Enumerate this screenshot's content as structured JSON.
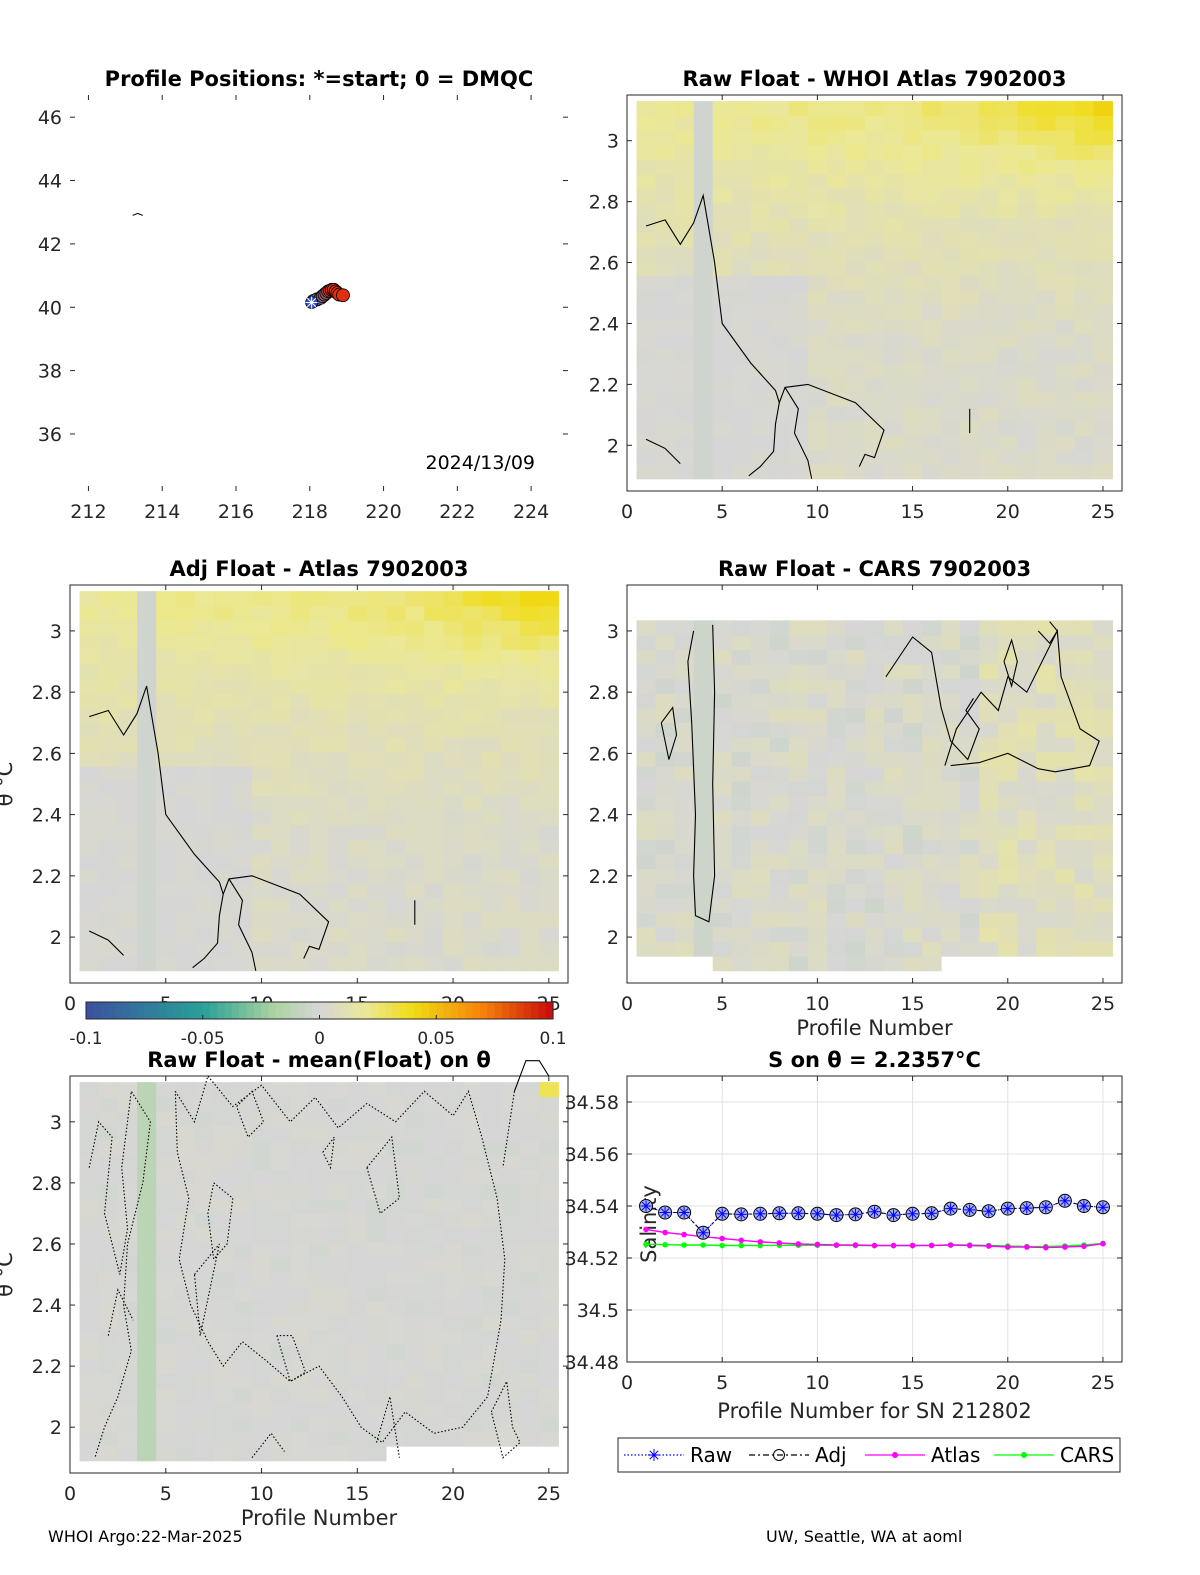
{
  "footer": {
    "left": "WHOI Argo:22-Mar-2025",
    "right": "UW, Seattle, WA at aoml"
  },
  "chart_data": [
    {
      "id": "positions",
      "type": "scatter",
      "title": "Profile Positions: *=start; 0 = DMQC",
      "date_label": "2024/13/09",
      "xlim": [
        211.5,
        225
      ],
      "ylim": [
        34.2,
        46.7
      ],
      "xticks": [
        212,
        214,
        216,
        218,
        220,
        222,
        224
      ],
      "yticks": [
        36,
        38,
        40,
        42,
        44,
        46
      ],
      "start": [
        218.05,
        40.15
      ],
      "track": [
        [
          218.1,
          40.2
        ],
        [
          218.2,
          40.25
        ],
        [
          218.3,
          40.3
        ],
        [
          218.35,
          40.35
        ],
        [
          218.4,
          40.4
        ],
        [
          218.45,
          40.45
        ],
        [
          218.5,
          40.5
        ],
        [
          218.55,
          40.52
        ],
        [
          218.6,
          40.55
        ],
        [
          218.65,
          40.55
        ],
        [
          218.7,
          40.5
        ],
        [
          218.75,
          40.45
        ],
        [
          218.8,
          40.4
        ],
        [
          218.9,
          40.38
        ]
      ]
    },
    {
      "id": "raw-atlas",
      "type": "heatmap",
      "title": "Raw Float - WHOI Atlas  7902003",
      "xlim": [
        0,
        26
      ],
      "ylim": [
        1.85,
        3.15
      ],
      "xticks": [
        0,
        5,
        10,
        15,
        20,
        25
      ],
      "yticks": [
        2,
        2.2,
        2.4,
        2.6,
        2.8,
        3
      ],
      "xlabel": "",
      "ylabel": "",
      "profiles": 25
    },
    {
      "id": "adj-atlas",
      "type": "heatmap",
      "title": "Adj Float - Atlas  7902003",
      "xlim": [
        0,
        26
      ],
      "ylim": [
        1.85,
        3.15
      ],
      "xticks": [
        0,
        5,
        10,
        15,
        20,
        25
      ],
      "yticks": [
        2,
        2.2,
        2.4,
        2.6,
        2.8,
        3
      ],
      "xlabel": "",
      "ylabel": "θ °C",
      "profiles": 25
    },
    {
      "id": "raw-cars",
      "type": "heatmap",
      "title": "Raw Float - CARS  7902003",
      "xlim": [
        0,
        26
      ],
      "ylim": [
        1.85,
        3.15
      ],
      "xticks": [
        0,
        5,
        10,
        15,
        20,
        25
      ],
      "yticks": [
        2,
        2.2,
        2.4,
        2.6,
        2.8,
        3
      ],
      "xlabel": "Profile Number",
      "ylabel": "",
      "profiles": 25
    },
    {
      "id": "raw-mean",
      "type": "heatmap",
      "title": "Raw Float - mean(Float) on θ",
      "xlim": [
        0,
        26
      ],
      "ylim": [
        1.85,
        3.15
      ],
      "xticks": [
        0,
        5,
        10,
        15,
        20,
        25
      ],
      "yticks": [
        2,
        2.2,
        2.4,
        2.6,
        2.8,
        3
      ],
      "xlabel": "Profile Number",
      "ylabel": "θ °C",
      "profiles": 25
    },
    {
      "id": "colorbar",
      "type": "heatmap",
      "range": [
        -0.1,
        0.1
      ],
      "ticks": [
        "-0.1",
        "-0.05",
        "0",
        "0.05",
        "0.1"
      ]
    },
    {
      "id": "salinity",
      "type": "line",
      "title": "S on θ = 2.2357°C",
      "xlabel": "Profile Number for SN 212802",
      "ylabel": "Salinity",
      "xlim": [
        0,
        26
      ],
      "ylim": [
        34.48,
        34.59
      ],
      "xticks": [
        0,
        5,
        10,
        15,
        20,
        25
      ],
      "yticks": [
        "34.48",
        "34.5",
        "34.52",
        "34.54",
        "34.56",
        "34.58"
      ],
      "grid": true,
      "x": [
        1,
        2,
        3,
        4,
        5,
        6,
        7,
        8,
        9,
        10,
        11,
        12,
        13,
        14,
        15,
        16,
        17,
        18,
        19,
        20,
        21,
        22,
        23,
        24,
        25
      ],
      "series": [
        {
          "name": "Raw",
          "color": "#0000ff",
          "values": [
            34.54,
            34.5375,
            34.5375,
            34.5297,
            34.537,
            34.5368,
            34.537,
            34.5372,
            34.5372,
            34.537,
            34.5365,
            34.5368,
            34.5378,
            34.5365,
            34.537,
            34.5372,
            34.539,
            34.5385,
            34.538,
            34.539,
            34.5392,
            34.5395,
            34.542,
            34.54,
            34.5395
          ]
        },
        {
          "name": "Adj",
          "color": "#000000",
          "values": [
            34.54,
            34.5375,
            34.5375,
            34.5297,
            34.537,
            34.5368,
            34.537,
            34.5372,
            34.5372,
            34.537,
            34.5365,
            34.5368,
            34.5378,
            34.5365,
            34.537,
            34.5372,
            34.539,
            34.5385,
            34.538,
            34.539,
            34.5392,
            34.5395,
            34.542,
            34.54,
            34.5395
          ]
        },
        {
          "name": "Atlas",
          "color": "#ff00ff",
          "values": [
            34.531,
            34.5298,
            34.529,
            34.5282,
            34.5275,
            34.5268,
            34.5262,
            34.5258,
            34.5254,
            34.5252,
            34.525,
            34.525,
            34.5248,
            34.5248,
            34.5248,
            34.5248,
            34.525,
            34.5248,
            34.5246,
            34.5242,
            34.5242,
            34.524,
            34.5242,
            34.5245,
            34.5255
          ]
        },
        {
          "name": "CARS",
          "color": "#00ff00",
          "values": [
            34.5253,
            34.5251,
            34.525,
            34.525,
            34.5248,
            34.5248,
            34.5248,
            34.5249,
            34.5249,
            34.5249,
            34.5249,
            34.5248,
            34.5248,
            34.5248,
            34.5248,
            34.5249,
            34.525,
            34.525,
            34.5248,
            34.5246,
            34.5244,
            34.5244,
            34.5246,
            34.525,
            34.5256
          ]
        }
      ],
      "legend": [
        "Raw",
        "Adj",
        "Atlas",
        "CARS"
      ]
    }
  ]
}
